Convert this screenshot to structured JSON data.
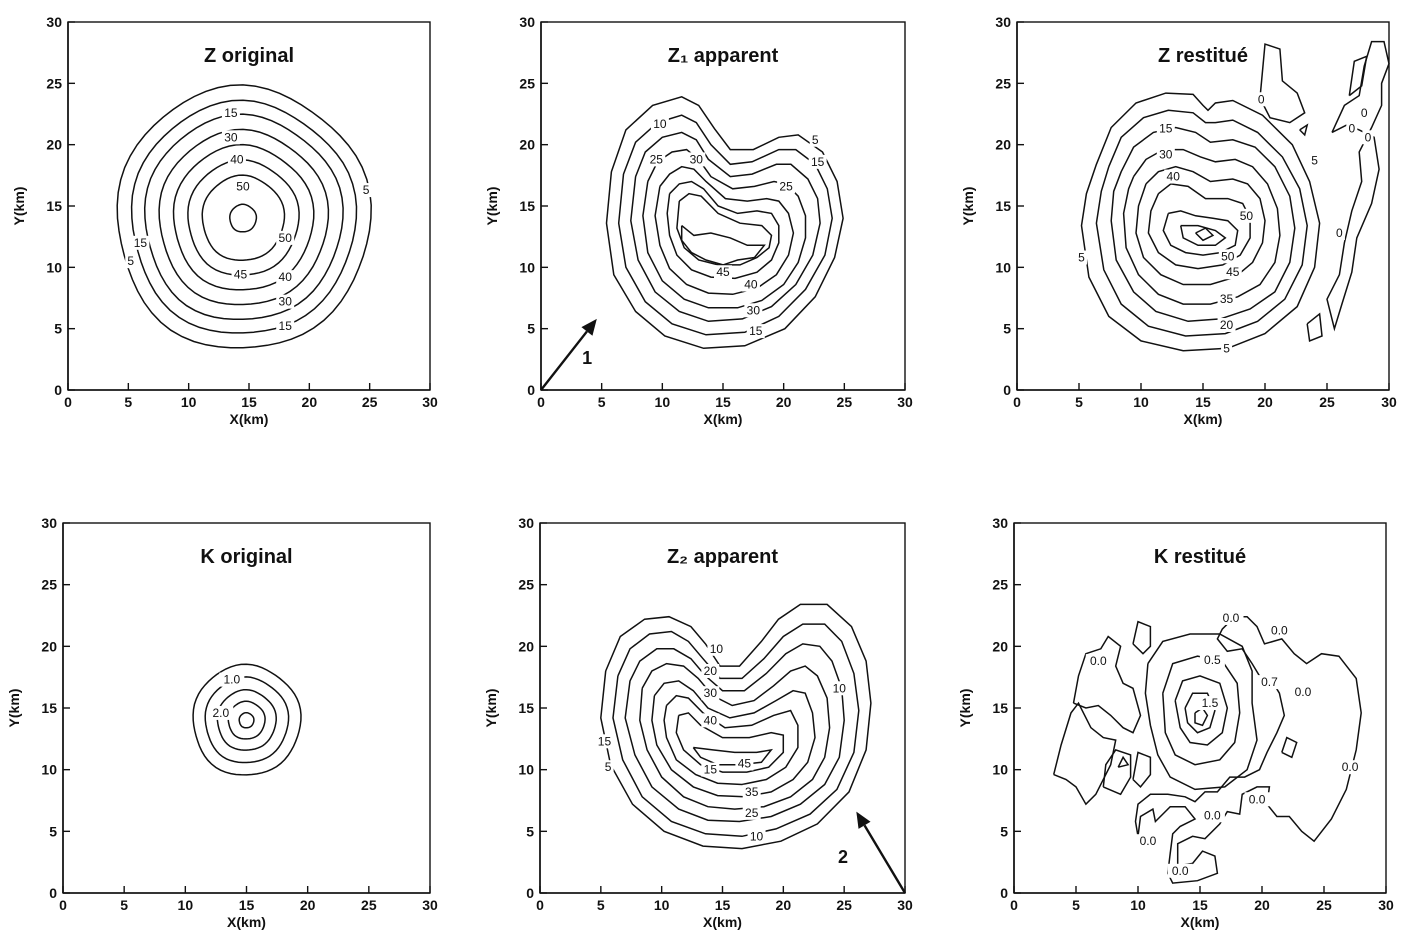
{
  "chart_data": [
    {
      "type": "contour",
      "title": "Z original",
      "xlabel": "X(km)",
      "ylabel": "Y(km)",
      "xlim": [
        0,
        30
      ],
      "ylim": [
        0,
        30
      ],
      "xticks": [
        "0",
        "5",
        "10",
        "15",
        "20",
        "25",
        "30"
      ],
      "yticks": [
        "0",
        "5",
        "10",
        "15",
        "20",
        "25",
        "30"
      ],
      "contours": [
        {
          "cx": 14.5,
          "cy": 14,
          "r": 10.5
        },
        {
          "cx": 14.5,
          "cy": 14,
          "r": 9.3
        },
        {
          "cx": 14.5,
          "cy": 14,
          "r": 8.2
        },
        {
          "cx": 14.5,
          "cy": 14,
          "r": 7.0
        },
        {
          "cx": 14.5,
          "cy": 14,
          "r": 5.8
        },
        {
          "cx": 14.5,
          "cy": 14,
          "r": 4.6
        },
        {
          "cx": 14.5,
          "cy": 14,
          "r": 3.4
        },
        {
          "cx": 14.5,
          "cy": 14,
          "r": 1.1
        }
      ],
      "contour_labels": [
        {
          "text": "15",
          "x": 13.5,
          "y": 22.6
        },
        {
          "text": "30",
          "x": 13.5,
          "y": 20.6
        },
        {
          "text": "40",
          "x": 14.0,
          "y": 18.8
        },
        {
          "text": "50",
          "x": 14.5,
          "y": 16.6
        },
        {
          "text": "5",
          "x": 24.7,
          "y": 16.3
        },
        {
          "text": "15",
          "x": 6.0,
          "y": 12.0
        },
        {
          "text": "5",
          "x": 5.2,
          "y": 10.5
        },
        {
          "text": "50",
          "x": 18.0,
          "y": 12.4
        },
        {
          "text": "45",
          "x": 14.3,
          "y": 9.4
        },
        {
          "text": "40",
          "x": 18.0,
          "y": 9.2
        },
        {
          "text": "30",
          "x": 18.0,
          "y": 7.2
        },
        {
          "text": "15",
          "x": 18.0,
          "y": 5.2
        }
      ]
    },
    {
      "type": "contour",
      "title": "Z₁ apparent",
      "xlabel": "X(km)",
      "ylabel": "Y(km)",
      "xlim": [
        0,
        30
      ],
      "ylim": [
        0,
        30
      ],
      "xticks": [
        "0",
        "5",
        "10",
        "15",
        "20",
        "25",
        "30"
      ],
      "yticks": [
        "0",
        "5",
        "10",
        "15",
        "20",
        "25",
        "30"
      ],
      "contour_labels": [
        {
          "text": "10",
          "x": 9.8,
          "y": 21.7
        },
        {
          "text": "25",
          "x": 9.5,
          "y": 18.8
        },
        {
          "text": "30",
          "x": 12.8,
          "y": 18.8
        },
        {
          "text": "5",
          "x": 22.6,
          "y": 20.4
        },
        {
          "text": "15",
          "x": 22.8,
          "y": 18.6
        },
        {
          "text": "25",
          "x": 20.2,
          "y": 16.6
        },
        {
          "text": "45",
          "x": 15.0,
          "y": 9.6
        },
        {
          "text": "40",
          "x": 17.3,
          "y": 8.6
        },
        {
          "text": "30",
          "x": 17.5,
          "y": 6.5
        },
        {
          "text": "15",
          "x": 17.7,
          "y": 4.8
        }
      ],
      "arrow_label": "1"
    },
    {
      "type": "contour",
      "title": "Z restitué",
      "xlabel": "X(km)",
      "ylabel": "Y(km)",
      "xlim": [
        0,
        30
      ],
      "ylim": [
        0,
        30
      ],
      "xticks": [
        "0",
        "5",
        "10",
        "15",
        "20",
        "25",
        "30"
      ],
      "yticks": [
        "0",
        "5",
        "10",
        "15",
        "20",
        "25",
        "30"
      ],
      "contour_labels": [
        {
          "text": "15",
          "x": 12.0,
          "y": 21.3
        },
        {
          "text": "30",
          "x": 12.0,
          "y": 19.2
        },
        {
          "text": "40",
          "x": 12.6,
          "y": 17.4
        },
        {
          "text": "0",
          "x": 19.7,
          "y": 23.7
        },
        {
          "text": "0",
          "x": 28.0,
          "y": 22.6
        },
        {
          "text": "0",
          "x": 27.0,
          "y": 21.3
        },
        {
          "text": "0",
          "x": 28.3,
          "y": 20.6
        },
        {
          "text": "5",
          "x": 24.0,
          "y": 18.7
        },
        {
          "text": "5",
          "x": 5.2,
          "y": 10.8
        },
        {
          "text": "50",
          "x": 18.5,
          "y": 14.2
        },
        {
          "text": "50",
          "x": 17.0,
          "y": 10.9
        },
        {
          "text": "45",
          "x": 17.4,
          "y": 9.6
        },
        {
          "text": "0",
          "x": 26.0,
          "y": 12.8
        },
        {
          "text": "35",
          "x": 16.9,
          "y": 7.4
        },
        {
          "text": "20",
          "x": 16.9,
          "y": 5.3
        },
        {
          "text": "5",
          "x": 16.9,
          "y": 3.4
        }
      ]
    },
    {
      "type": "contour",
      "title": "K original",
      "xlabel": "X(km)",
      "ylabel": "Y(km)",
      "xlim": [
        0,
        30
      ],
      "ylim": [
        0,
        30
      ],
      "xticks": [
        "0",
        "5",
        "10",
        "15",
        "20",
        "25",
        "30"
      ],
      "yticks": [
        "0",
        "5",
        "10",
        "15",
        "20",
        "25",
        "30"
      ],
      "contours": [
        {
          "cx": 15,
          "cy": 14,
          "r": 4.4
        },
        {
          "cx": 15,
          "cy": 14,
          "r": 3.4
        },
        {
          "cx": 15,
          "cy": 14,
          "r": 2.4
        },
        {
          "cx": 15,
          "cy": 14,
          "r": 1.5
        },
        {
          "cx": 15,
          "cy": 14,
          "r": 0.6
        }
      ],
      "contour_labels": [
        {
          "text": "1.0",
          "x": 13.8,
          "y": 17.3
        },
        {
          "text": "2.0",
          "x": 12.9,
          "y": 14.6
        }
      ]
    },
    {
      "type": "contour",
      "title": "Z₂ apparent",
      "xlabel": "X(km)",
      "ylabel": "Y(km)",
      "xlim": [
        0,
        30
      ],
      "ylim": [
        0,
        30
      ],
      "xticks": [
        "0",
        "5",
        "10",
        "15",
        "20",
        "25",
        "30"
      ],
      "yticks": [
        "0",
        "5",
        "10",
        "15",
        "20",
        "25",
        "30"
      ],
      "contour_labels": [
        {
          "text": "10",
          "x": 14.5,
          "y": 19.8
        },
        {
          "text": "20",
          "x": 14.0,
          "y": 18.0
        },
        {
          "text": "30",
          "x": 14.0,
          "y": 16.2
        },
        {
          "text": "40",
          "x": 14.0,
          "y": 14.0
        },
        {
          "text": "15",
          "x": 5.3,
          "y": 12.3
        },
        {
          "text": "5",
          "x": 5.6,
          "y": 10.2
        },
        {
          "text": "10",
          "x": 24.6,
          "y": 16.6
        },
        {
          "text": "15",
          "x": 14.0,
          "y": 10.0
        },
        {
          "text": "45",
          "x": 16.8,
          "y": 10.5
        },
        {
          "text": "35",
          "x": 17.4,
          "y": 8.2
        },
        {
          "text": "25",
          "x": 17.4,
          "y": 6.5
        },
        {
          "text": "10",
          "x": 17.8,
          "y": 4.6
        }
      ],
      "arrow_label": "2"
    },
    {
      "type": "contour",
      "title": "K restitué",
      "xlabel": "X(km)",
      "ylabel": "Y(km)",
      "xlim": [
        0,
        30
      ],
      "ylim": [
        0,
        30
      ],
      "xticks": [
        "0",
        "5",
        "10",
        "15",
        "20",
        "25",
        "30"
      ],
      "yticks": [
        "0",
        "5",
        "10",
        "15",
        "20",
        "25",
        "30"
      ],
      "contour_labels": [
        {
          "text": "0.0",
          "x": 17.5,
          "y": 22.3
        },
        {
          "text": "0.0",
          "x": 21.4,
          "y": 21.3
        },
        {
          "text": "0.0",
          "x": 6.8,
          "y": 18.8
        },
        {
          "text": "0.5",
          "x": 16.0,
          "y": 18.9
        },
        {
          "text": "1.5",
          "x": 15.8,
          "y": 15.4
        },
        {
          "text": "0.7",
          "x": 20.6,
          "y": 17.1
        },
        {
          "text": "0.0",
          "x": 23.3,
          "y": 16.3
        },
        {
          "text": "0.0",
          "x": 27.1,
          "y": 10.2
        },
        {
          "text": "0.0",
          "x": 19.6,
          "y": 7.6
        },
        {
          "text": "0.0",
          "x": 16.0,
          "y": 6.3
        },
        {
          "text": "0.0",
          "x": 10.8,
          "y": 4.2
        },
        {
          "text": "0.0",
          "x": 13.4,
          "y": 1.8
        }
      ]
    }
  ]
}
